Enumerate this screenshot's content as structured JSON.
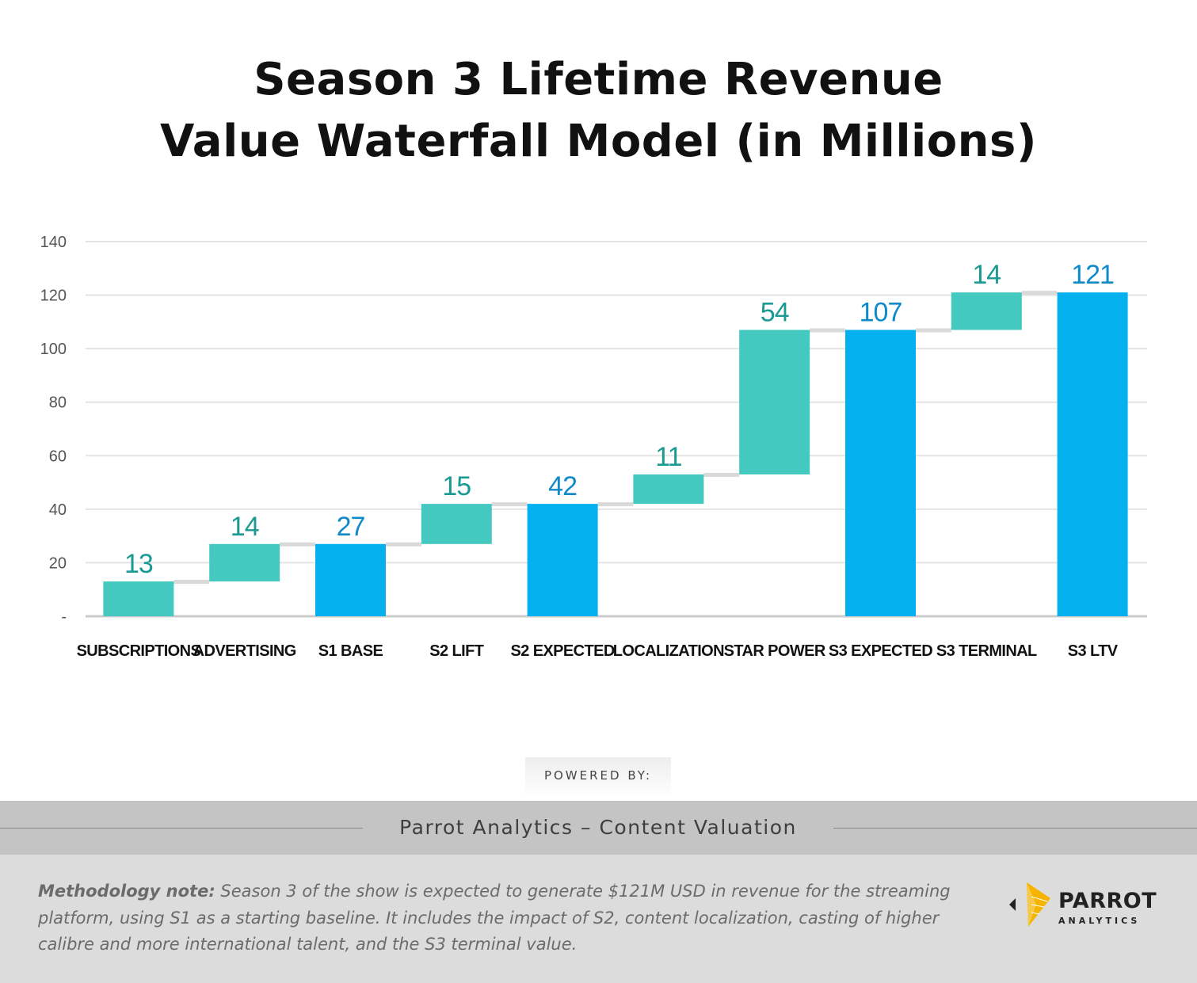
{
  "title": {
    "line1": "Season 3 Lifetime Revenue",
    "line2": "Value Waterfall Model (in Millions)"
  },
  "colors": {
    "increment": "#44c9c1",
    "total": "#05b0ef",
    "increment_label": "#1a9a92",
    "total_label": "#0f8ac9",
    "gridline": "#e4e4e4",
    "axis": "#cccccc",
    "connector": "#d9d9d9"
  },
  "chart_data": {
    "type": "waterfall",
    "title": "Season 3 Lifetime Revenue Value Waterfall Model (in Millions)",
    "xlabel": "",
    "ylabel": "",
    "ylim": [
      0,
      140
    ],
    "yticks": [
      0,
      20,
      40,
      60,
      80,
      100,
      120,
      140
    ],
    "ytick_labels": [
      "-",
      "20",
      "40",
      "60",
      "80",
      "100",
      "120",
      "140"
    ],
    "grid": true,
    "categories": [
      "SUBSCRIPTIONS",
      "ADVERTISING",
      "S1 BASE",
      "S2 LIFT",
      "S2 EXPECTED",
      "LOCALIZATION",
      "STAR POWER",
      "S3 EXPECTED",
      "S3 TERMINAL",
      "S3 LTV"
    ],
    "values": [
      13,
      14,
      27,
      15,
      42,
      11,
      54,
      107,
      14,
      121
    ],
    "kinds": [
      "increment",
      "increment",
      "total",
      "increment",
      "total",
      "increment",
      "increment",
      "total",
      "increment",
      "total"
    ],
    "bases": [
      0,
      13,
      0,
      27,
      0,
      42,
      53,
      0,
      107,
      0
    ],
    "tops": [
      13,
      27,
      27,
      42,
      42,
      53,
      107,
      107,
      121,
      121
    ],
    "data_labels": [
      "13",
      "14",
      "27",
      "15",
      "42",
      "11",
      "54",
      "107",
      "14",
      "121"
    ]
  },
  "footer": {
    "powered_by": "POWERED BY:",
    "band_text": "Parrot Analytics – Content Valuation",
    "note_label": "Methodology note:",
    "note_text": " Season 3 of the show is expected to generate $121M USD in revenue for the streaming platform, using S1 as a starting baseline. It includes the impact of S2, content localization, casting of higher calibre and more international talent, and the S3 terminal value.",
    "logo_word": "PARROT",
    "logo_sub": "ANALYTICS"
  }
}
